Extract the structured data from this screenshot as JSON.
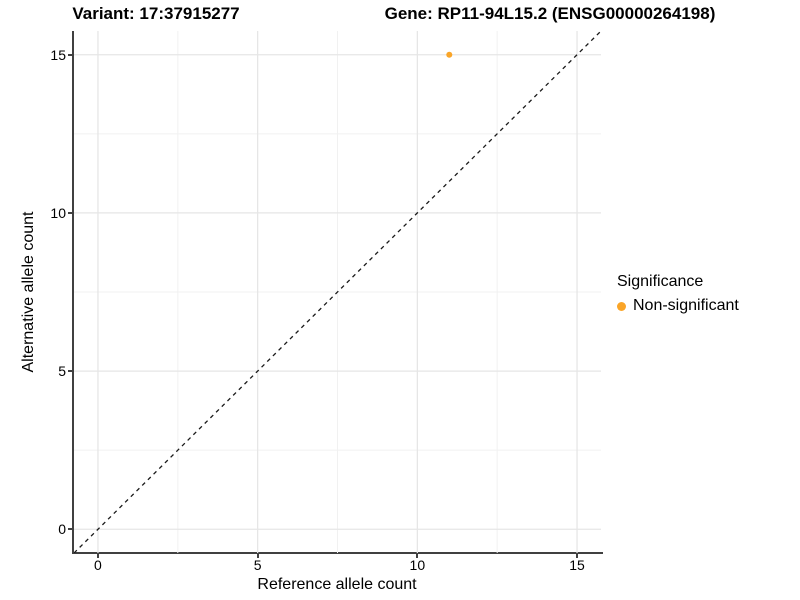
{
  "header": {
    "variant_title": "Variant: 17:37915277",
    "gene_title": "Gene: RP11-94L15.2 (ENSG00000264198)"
  },
  "axes": {
    "x_label": "Reference allele count",
    "y_label": "Alternative allele count"
  },
  "legend": {
    "title": "Significance",
    "items": [
      {
        "label": "Non-significant",
        "color": "#FAA528"
      }
    ]
  },
  "colors": {
    "point": "#FAA528",
    "axis_line": "#404040",
    "grid_major": "#E6E6E6",
    "grid_minor": "#F1F1F1",
    "identity_line": "#1A1A1A",
    "text": "#000000"
  },
  "chart_data": {
    "type": "scatter",
    "title": "Variant: 17:37915277 — Gene: RP11-94L15.2 (ENSG00000264198)",
    "xlabel": "Reference allele count",
    "ylabel": "Alternative allele count",
    "xlim": [
      -0.75,
      15.75
    ],
    "ylim": [
      -0.75,
      15.75
    ],
    "x_ticks": [
      0,
      5,
      10,
      15
    ],
    "y_ticks": [
      0,
      5,
      10,
      15
    ],
    "x_minor_ticks": [
      2.5,
      7.5,
      12.5
    ],
    "y_minor_ticks": [
      2.5,
      7.5,
      12.5
    ],
    "grid": true,
    "legend_position": "right",
    "series": [
      {
        "name": "Non-significant",
        "color": "#FAA528",
        "point_radius_px": 3,
        "points": [
          {
            "x": 11,
            "y": 15
          }
        ]
      }
    ],
    "reference_line": {
      "kind": "identity",
      "equation": "y = x",
      "style": "dashed",
      "color": "#1A1A1A"
    }
  }
}
